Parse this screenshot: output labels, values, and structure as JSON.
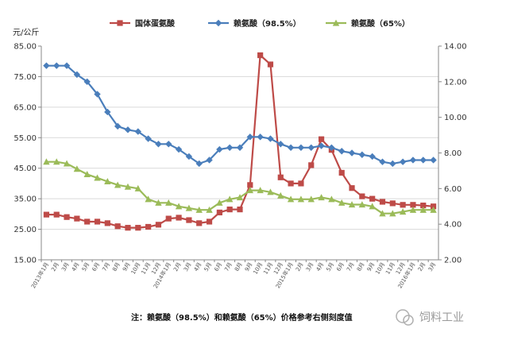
{
  "chart_data": {
    "type": "line",
    "unit_label": "元/公斤",
    "note": "注：赖氨酸（98.5%）和赖氨酸（65%）价格参考右侧刻度值",
    "watermark": "饲料工业",
    "y_left": {
      "min": 15,
      "max": 85,
      "ticks": [
        "85.00",
        "75.00",
        "65.00",
        "55.00",
        "45.00",
        "35.00",
        "25.00",
        "15.00"
      ]
    },
    "y_right": {
      "min": 2,
      "max": 14,
      "ticks": [
        "14.00",
        "12.00",
        "10.00",
        "8.00",
        "6.00",
        "4.00",
        "2.00"
      ]
    },
    "x_labels": [
      "2013年1月",
      "2月",
      "3月",
      "4月",
      "5月",
      "6月",
      "7月",
      "8月",
      "9月",
      "10月",
      "11月",
      "12月",
      "2014年1月",
      "2月",
      "3月",
      "4月",
      "5月",
      "6月",
      "7月",
      "8月",
      "9月",
      "10月",
      "11月",
      "12月",
      "2015年1月",
      "2月",
      "3月",
      "4月",
      "5月",
      "6月",
      "7月",
      "8月",
      "9月",
      "10月",
      "11月",
      "12月",
      "2016年1月",
      "2月",
      "3月"
    ],
    "series": [
      {
        "name": "国体蛋氨酸",
        "axis": "left",
        "color": "#be4b48",
        "marker": "square",
        "values": [
          29.8,
          29.8,
          29,
          28.5,
          27.5,
          27.5,
          27,
          26,
          25.5,
          25.5,
          25.8,
          26.5,
          28.5,
          28.8,
          28,
          27,
          27.5,
          30.5,
          31.5,
          31.5,
          39.5,
          82,
          79,
          42,
          40,
          40,
          46,
          54.5,
          51,
          43.5,
          38.5,
          35.8,
          35,
          34,
          33.5,
          33,
          33,
          32.8,
          32.5
        ]
      },
      {
        "name": "赖氨酸（98.5%）",
        "axis": "right",
        "color": "#4a7ebb",
        "marker": "diamond",
        "values": [
          12.9,
          12.9,
          12.9,
          12.4,
          12.0,
          11.3,
          10.3,
          9.5,
          9.3,
          9.2,
          8.8,
          8.5,
          8.5,
          8.2,
          7.8,
          7.4,
          7.6,
          8.2,
          8.3,
          8.3,
          8.9,
          8.9,
          8.8,
          8.5,
          8.3,
          8.3,
          8.3,
          8.4,
          8.3,
          8.1,
          8.0,
          7.9,
          7.8,
          7.5,
          7.4,
          7.5,
          7.6,
          7.6,
          7.6
        ]
      },
      {
        "name": "赖氨酸（65%）",
        "axis": "right",
        "color": "#9bbb59",
        "marker": "triangle",
        "values": [
          7.5,
          7.5,
          7.4,
          7.1,
          6.8,
          6.6,
          6.4,
          6.2,
          6.1,
          6.0,
          5.4,
          5.2,
          5.2,
          5.0,
          4.9,
          4.8,
          4.8,
          5.2,
          5.4,
          5.5,
          5.9,
          5.9,
          5.8,
          5.6,
          5.4,
          5.4,
          5.4,
          5.5,
          5.4,
          5.2,
          5.1,
          5.1,
          5.0,
          4.6,
          4.6,
          4.7,
          4.8,
          4.8,
          4.8
        ]
      }
    ]
  }
}
